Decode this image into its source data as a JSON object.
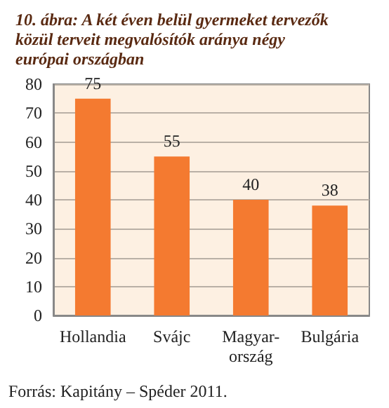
{
  "chart_data": {
    "type": "bar",
    "title": "10. ábra: A két éven belül gyermeket tervezők közül terveit megvalósítók aránya négy európai országban",
    "categories": [
      "Hollandia",
      "Svájc",
      "Magyar-\nország",
      "Bulgária"
    ],
    "values": [
      75,
      55,
      40,
      38
    ],
    "color": "#f47a30",
    "data_labels": true,
    "ylim": [
      0,
      80
    ],
    "yticks": [
      0,
      10,
      20,
      30,
      40,
      50,
      60,
      70,
      80
    ],
    "grid": "y",
    "annotations": [
      "Forrás: Kapitány – Spéder 2011."
    ]
  }
}
